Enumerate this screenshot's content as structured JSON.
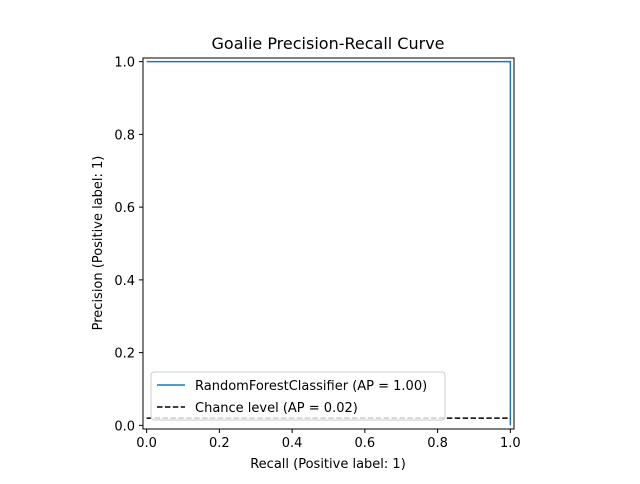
{
  "chart_data": {
    "type": "line",
    "title": "Goalie Precision-Recall Curve",
    "xlabel": "Recall (Positive label: 1)",
    "ylabel": "Precision (Positive label: 1)",
    "xlim": [
      -0.01,
      1.01
    ],
    "ylim": [
      -0.01,
      1.01
    ],
    "xticks": [
      "0.0",
      "0.2",
      "0.4",
      "0.6",
      "0.8",
      "1.0"
    ],
    "yticks": [
      "0.0",
      "0.2",
      "0.4",
      "0.6",
      "0.8",
      "1.0"
    ],
    "grid": false,
    "legend_position": "lower-left",
    "series": [
      {
        "name": "RandomForestClassifier (AP = 1.00)",
        "color": "#1f77b4",
        "style": "solid",
        "step": true,
        "x": [
          0.0,
          1.0,
          1.0
        ],
        "y": [
          1.0,
          1.0,
          0.0
        ]
      },
      {
        "name": "Chance level (AP = 0.02)",
        "color": "#000000",
        "style": "dashed",
        "step": false,
        "x": [
          0.0,
          1.0
        ],
        "y": [
          0.02,
          0.02
        ]
      }
    ]
  }
}
